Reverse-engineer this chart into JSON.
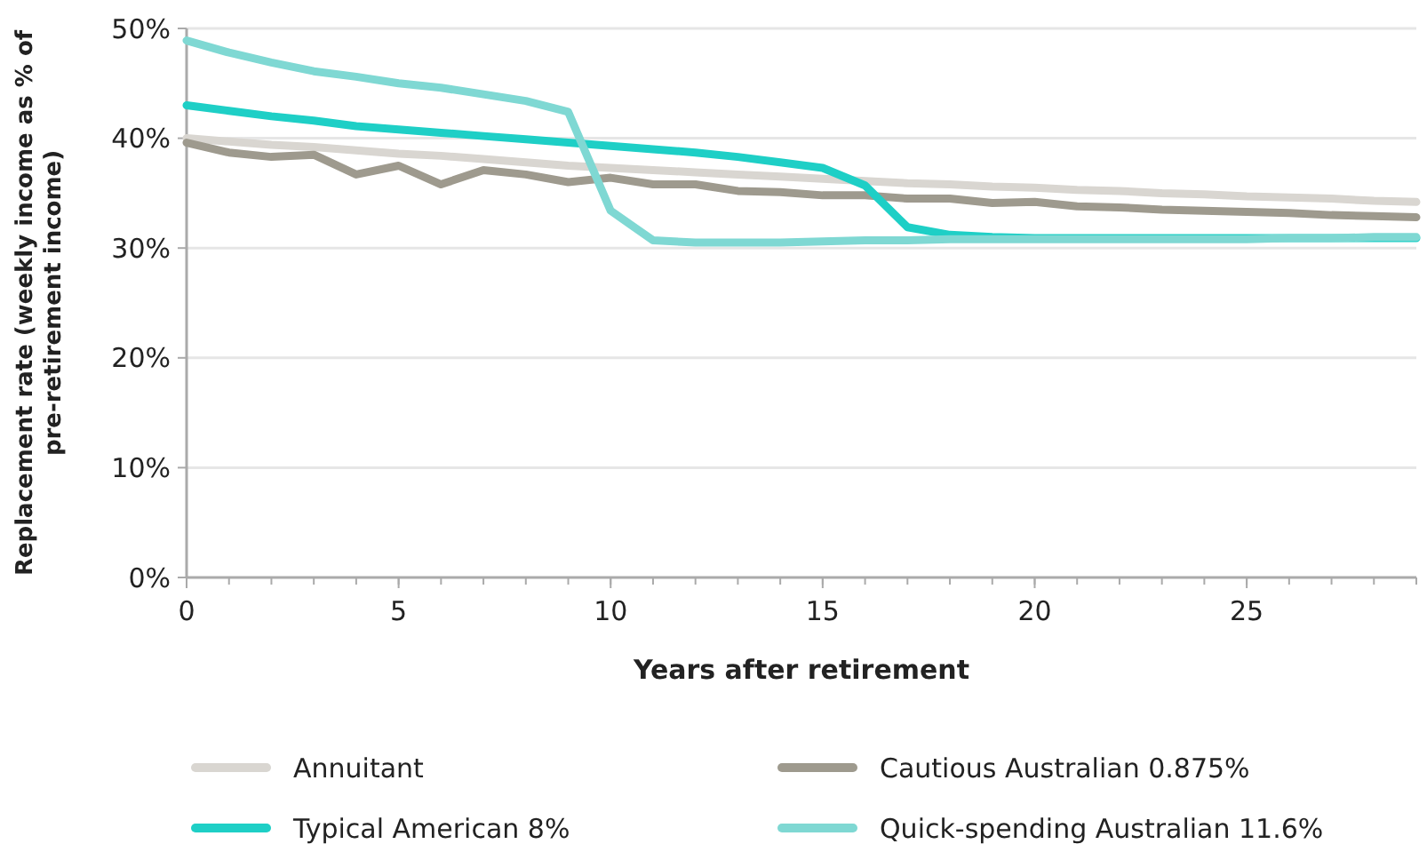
{
  "chart_data": {
    "type": "line",
    "xlabel": "Years after retirement",
    "ylabel": "Replacement rate (weekly income as % of pre-retirement income)",
    "x": [
      0,
      1,
      2,
      3,
      4,
      5,
      6,
      7,
      8,
      9,
      10,
      11,
      12,
      13,
      14,
      15,
      16,
      17,
      18,
      19,
      20,
      21,
      22,
      23,
      24,
      25,
      26,
      27,
      28,
      29
    ],
    "xlim": [
      0,
      29
    ],
    "xticks": [
      0,
      5,
      10,
      15,
      20,
      25
    ],
    "ylim": [
      0,
      50
    ],
    "yticks": [
      {
        "value": 0,
        "label": "0%"
      },
      {
        "value": 10,
        "label": "10%"
      },
      {
        "value": 20,
        "label": "20%"
      },
      {
        "value": 30,
        "label": "30%"
      },
      {
        "value": 40,
        "label": "40%"
      },
      {
        "value": 50,
        "label": "50%"
      }
    ],
    "grid": "y",
    "legend": "bottom",
    "marker": "none",
    "line_style": "solid",
    "series": [
      {
        "name": "Annuitant",
        "color": "#d9d6d1",
        "values": [
          40,
          39.7,
          39.4,
          39.2,
          38.9,
          38.6,
          38.4,
          38.1,
          37.8,
          37.5,
          37.3,
          37.1,
          36.9,
          36.7,
          36.5,
          36.3,
          36.1,
          35.9,
          35.8,
          35.6,
          35.5,
          35.3,
          35.2,
          35,
          34.9,
          34.7,
          34.6,
          34.5,
          34.3,
          34.2
        ]
      },
      {
        "name": "Cautious Australian 0.875%",
        "color": "#9e9a8e",
        "values": [
          39.6,
          38.7,
          38.3,
          38.5,
          36.7,
          37.5,
          35.8,
          37.1,
          36.7,
          36,
          36.4,
          35.8,
          35.8,
          35.2,
          35.1,
          34.8,
          34.8,
          34.5,
          34.5,
          34.1,
          34.2,
          33.8,
          33.7,
          33.5,
          33.4,
          33.3,
          33.2,
          33,
          32.9,
          32.8
        ]
      },
      {
        "name": "Typical American 8%",
        "color": "#1ecfc6",
        "values": [
          43,
          42.5,
          42,
          41.6,
          41.1,
          40.8,
          40.5,
          40.2,
          39.9,
          39.6,
          39.3,
          39,
          38.7,
          38.3,
          37.8,
          37.3,
          35.7,
          31.9,
          31.2,
          31,
          30.9,
          30.9,
          30.9,
          30.9,
          30.9,
          30.9,
          30.9,
          30.9,
          30.9,
          30.9
        ]
      },
      {
        "name": "Quick-spending Australian 11.6%",
        "color": "#7fd8d3",
        "values": [
          48.9,
          47.8,
          46.9,
          46.1,
          45.6,
          45,
          44.6,
          44,
          43.4,
          42.4,
          33.4,
          30.7,
          30.5,
          30.5,
          30.5,
          30.6,
          30.7,
          30.7,
          30.8,
          30.8,
          30.8,
          30.8,
          30.8,
          30.8,
          30.8,
          30.8,
          30.9,
          30.9,
          31,
          31
        ]
      }
    ]
  }
}
